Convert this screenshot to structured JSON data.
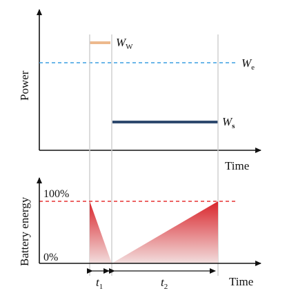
{
  "top_panel": {
    "y_label": "Power",
    "x_label": "Time",
    "labels": {
      "ww": {
        "main": "W",
        "sub": "W"
      },
      "we": {
        "main": "W",
        "sub": "e"
      },
      "ws": {
        "main": "W",
        "sub": "s"
      }
    },
    "colors": {
      "ww": "#EDB98D",
      "we": "#3A9DE0",
      "ws": "#2E4A6E"
    }
  },
  "bottom_panel": {
    "y_label": "Battery energy",
    "x_label": "Time",
    "tick_100": "100%",
    "tick_0": "0%",
    "interval_labels": {
      "t1": {
        "main": "t",
        "sub": "1"
      },
      "t2": {
        "main": "t",
        "sub": "2"
      }
    },
    "colors": {
      "full_line": "#E53030",
      "fill_dark": "#D9252B",
      "fill_light": "#F2DEDE"
    }
  }
}
